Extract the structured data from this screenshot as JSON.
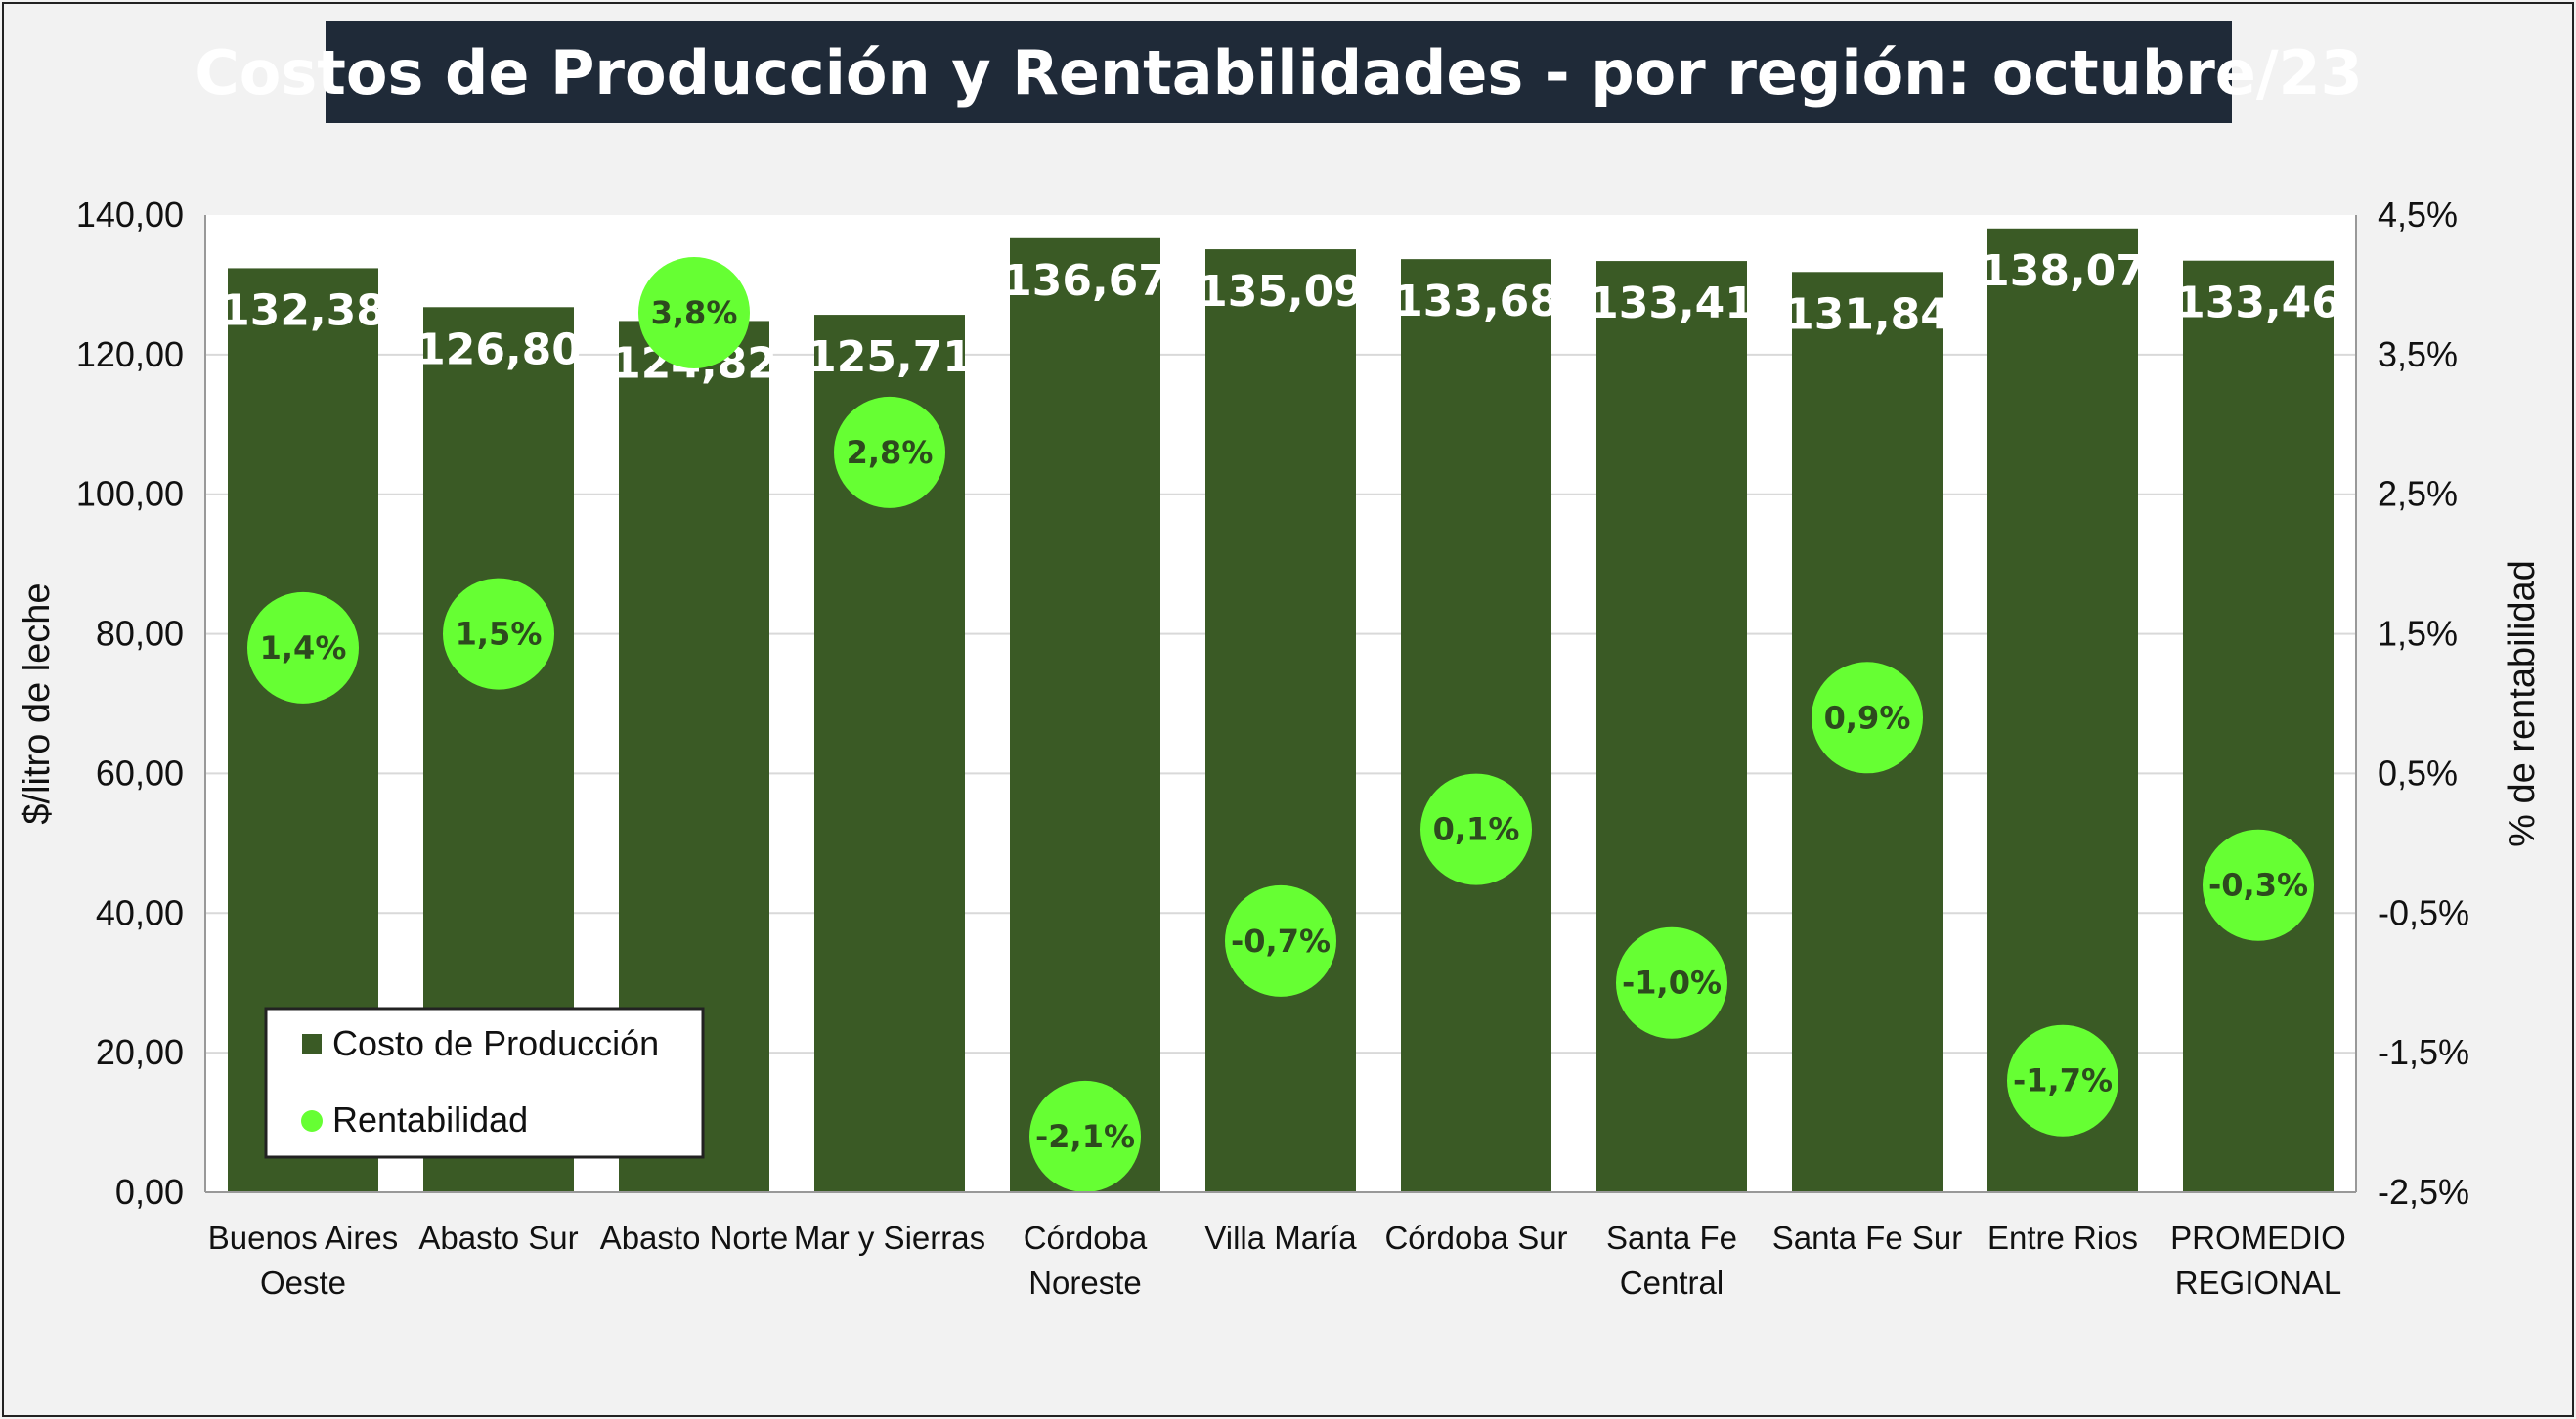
{
  "chart_data": {
    "type": "bar",
    "title": "Costos de Producción y Rentabilidades - por región: octubre/23",
    "ylabel": "$/litro de leche",
    "y2label": "% de rentabilidad",
    "ylim": [
      0,
      140
    ],
    "y2lim": [
      -2.5,
      4.5
    ],
    "yticks": [
      "0,00",
      "20,00",
      "40,00",
      "60,00",
      "80,00",
      "100,00",
      "120,00",
      "140,00"
    ],
    "y2ticks": [
      "-2,5%",
      "-1,5%",
      "-0,5%",
      "0,5%",
      "1,5%",
      "2,5%",
      "3,5%",
      "4,5%"
    ],
    "categories": [
      [
        "Buenos Aires",
        "Oeste"
      ],
      [
        "Abasto Sur"
      ],
      [
        "Abasto Norte"
      ],
      [
        "Mar y Sierras"
      ],
      [
        "Córdoba",
        "Noreste"
      ],
      [
        "Villa María"
      ],
      [
        "Córdoba Sur"
      ],
      [
        "Santa Fe",
        "Central"
      ],
      [
        "Santa Fe Sur"
      ],
      [
        "Entre Rios"
      ],
      [
        "PROMEDIO",
        "REGIONAL"
      ]
    ],
    "series": [
      {
        "name": "Costo de Producción",
        "axis": "left",
        "values": [
          132.38,
          126.8,
          124.82,
          125.71,
          136.67,
          135.09,
          133.68,
          133.41,
          131.84,
          138.07,
          133.46
        ],
        "labels": [
          "132,38",
          "126,80",
          "124,82",
          "125,71",
          "136,67",
          "135,09",
          "133,68",
          "133,41",
          "131,84",
          "138,07",
          "133,46"
        ]
      },
      {
        "name": "Rentabilidad",
        "axis": "right",
        "values": [
          1.4,
          1.5,
          3.8,
          2.8,
          -2.1,
          -0.7,
          0.1,
          -1.0,
          0.9,
          -1.7,
          -0.3
        ],
        "labels": [
          "1,4%",
          "1,5%",
          "3,8%",
          "2,8%",
          "-2,1%",
          "-0,7%",
          "0,1%",
          "-1,0%",
          "0,9%",
          "-1,7%",
          "-0,3%"
        ]
      }
    ],
    "colors": {
      "bar": "#3a5a25",
      "dot": "#66ff33",
      "dot_text": "#2d4a1e",
      "title_bg": "#1f2a38"
    },
    "legend_position": "bottom-left",
    "grid": true
  }
}
